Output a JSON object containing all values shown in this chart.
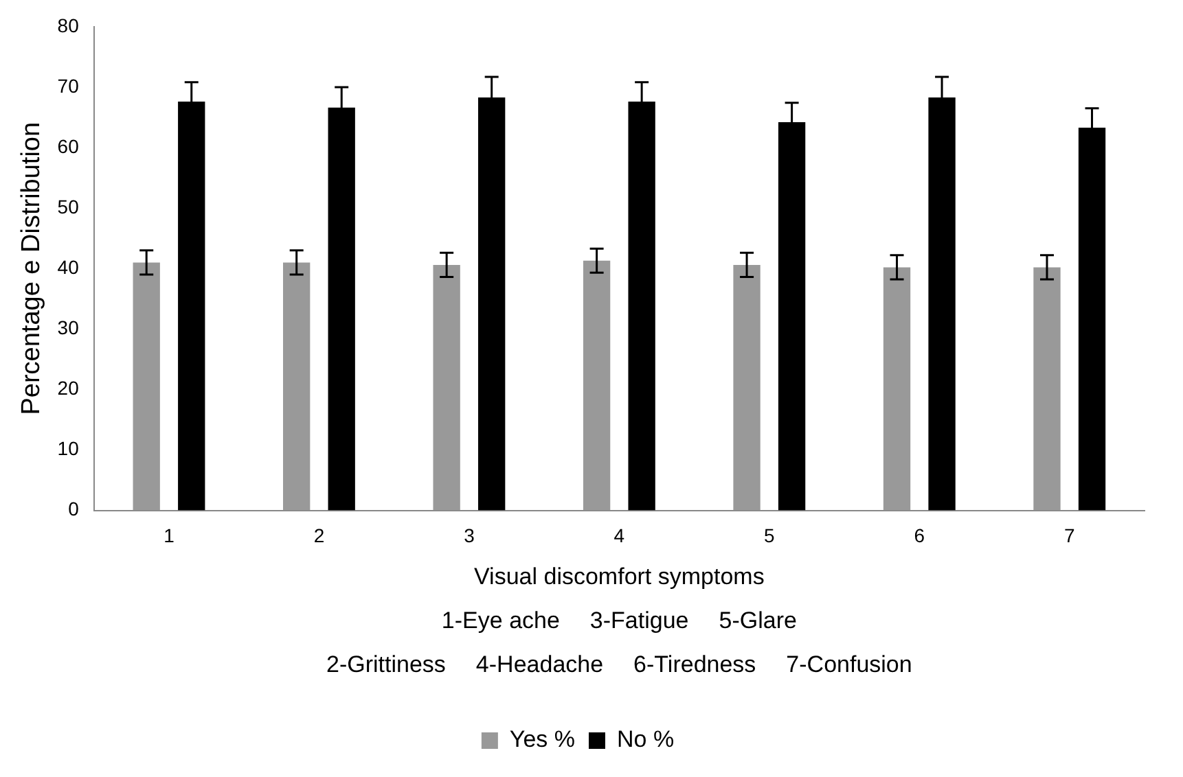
{
  "chart_data": {
    "type": "bar",
    "xlabel": "Visual discomfort symptoms",
    "ylabel": "Percentage e Distribution",
    "categories": [
      "1",
      "2",
      "3",
      "4",
      "5",
      "6",
      "7"
    ],
    "series": [
      {
        "name": "Yes %",
        "color": "#999999",
        "values": [
          41,
          41,
          40.6,
          41.3,
          40.6,
          40.2,
          40.2
        ],
        "errors": [
          2,
          2,
          2,
          2,
          2,
          2,
          2
        ]
      },
      {
        "name": "No %",
        "color": "#000000",
        "values": [
          67.6,
          66.6,
          68.3,
          67.6,
          64.2,
          68.3,
          63.3
        ],
        "errors": [
          3.2,
          3.4,
          3.4,
          3.2,
          3.2,
          3.4,
          3.2
        ]
      }
    ],
    "ylim": [
      0,
      80
    ],
    "yticks": [
      0,
      10,
      20,
      30,
      40,
      50,
      60,
      70,
      80
    ],
    "grid": false,
    "legend": "bottom",
    "annotations": [
      "1-Eye ache",
      "3-Fatigue",
      "5-Glare",
      "2-Grittiness",
      "4-Headache",
      "6-Tiredness",
      "7-Confusion"
    ]
  }
}
